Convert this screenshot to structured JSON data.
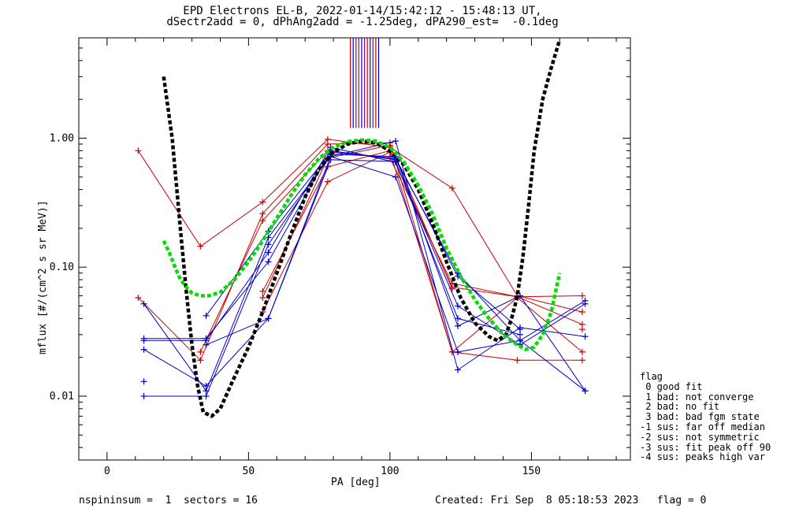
{
  "title_line1": "EPD Electrons EL-B, 2022-01-14/15:42:12 - 15:48:13 UT,",
  "title_line2": "dSectr2add = 0, dPhAng2add = -1.25deg, dPA290_est=  -0.1deg",
  "footer_left": "nspininsum =  1  sectors = 16",
  "footer_right": "Created: Fri Sep  8 05:18:53 2023   flag = 0",
  "legend": {
    "title": "flag",
    "items": [
      " 0 good fit",
      " 1 bad: not converge",
      " 2 bad: no fit",
      " 3 bad: bad fgm state",
      "-1 sus: far off median",
      "-2 sus: not symmetric",
      "-3 sus: fit peak off 90",
      "-4 sus: peaks high var"
    ]
  },
  "colors": {
    "red": "#cc0000",
    "blue": "#0000cc",
    "black": "#000000",
    "green": "#00dd00",
    "purple": "#7700aa"
  },
  "chart_data": {
    "type": "line",
    "xlabel": "PA [deg]",
    "ylabel": "mflux [#/(cm^2 s sr MeV)]",
    "xlim": [
      -10,
      185
    ],
    "ylim": [
      0.0032,
      6.0
    ],
    "ylog": true,
    "xticks": [
      0,
      50,
      100,
      150
    ],
    "xtick_labels": [
      "0",
      "50",
      "100",
      "150"
    ],
    "yticks": [
      0.01,
      0.1,
      1.0
    ],
    "ytick_labels": [
      "0.01",
      "0.10",
      "1.00"
    ],
    "vertical_lines_x": [
      86,
      87,
      88,
      89,
      90,
      91,
      92,
      93,
      94,
      95,
      96
    ],
    "vertical_lines_ymin": 1.2,
    "series": [
      {
        "color": "red",
        "x": [
          11,
          33,
          55,
          78,
          100,
          122,
          145,
          168
        ],
        "y": [
          0.8,
          0.145,
          0.32,
          0.98,
          0.85,
          0.41,
          0.06,
          0.045
        ]
      },
      {
        "color": "red",
        "x": [
          11,
          33,
          55,
          78,
          100,
          122,
          145,
          168
        ],
        "y": [
          0.058,
          0.019,
          0.26,
          0.9,
          0.92,
          0.022,
          0.019,
          0.019
        ]
      },
      {
        "color": "red",
        "x": [
          33,
          55,
          78,
          100,
          122,
          145,
          168
        ],
        "y": [
          0.022,
          0.23,
          0.8,
          0.7,
          0.075,
          0.059,
          0.06
        ]
      },
      {
        "color": "red",
        "x": [
          55,
          78,
          100,
          122,
          145,
          168
        ],
        "y": [
          0.065,
          0.6,
          0.8,
          0.07,
          0.059,
          0.036
        ]
      },
      {
        "color": "red",
        "x": [
          55,
          78,
          100,
          122,
          145,
          168
        ],
        "y": [
          0.045,
          0.46,
          0.78,
          0.022,
          0.058,
          0.022
        ]
      },
      {
        "color": "red",
        "x": [
          55,
          78,
          100,
          122
        ],
        "y": [
          0.058,
          0.7,
          0.88,
          0.068
        ]
      },
      {
        "color": "blue",
        "x": [
          13,
          35,
          57,
          79,
          102,
          124,
          146,
          169
        ],
        "y": [
          0.052,
          0.011,
          0.17,
          0.72,
          0.95,
          0.016,
          0.034,
          0.029
        ]
      },
      {
        "color": "blue",
        "x": [
          13,
          35,
          57,
          79,
          102,
          124,
          146,
          169
        ],
        "y": [
          0.028,
          0.028,
          0.11,
          0.8,
          0.68,
          0.09,
          0.027,
          0.011
        ]
      },
      {
        "color": "blue",
        "x": [
          13,
          35,
          57,
          79,
          102,
          124,
          146,
          169
        ],
        "y": [
          0.023,
          0.012,
          0.04,
          0.72,
          0.5,
          0.022,
          0.027,
          0.055
        ]
      },
      {
        "color": "blue",
        "x": [
          13,
          35,
          57,
          79,
          102,
          124,
          146,
          169
        ],
        "y": [
          0.01,
          0.01,
          0.15,
          0.75,
          0.72,
          0.035,
          0.06,
          0.011
        ]
      },
      {
        "color": "blue",
        "x": [
          13,
          35,
          57,
          79,
          102,
          124,
          146,
          169
        ],
        "y": [
          0.027,
          0.027,
          0.13,
          0.85,
          0.65,
          0.05,
          0.025,
          0.052
        ]
      },
      {
        "color": "blue",
        "x": [
          35,
          57,
          79,
          102,
          124,
          146
        ],
        "y": [
          0.042,
          0.19,
          0.78,
          0.7,
          0.085,
          0.033
        ]
      },
      {
        "color": "blue",
        "x": [
          35,
          57,
          79,
          102,
          124,
          146
        ],
        "y": [
          0.025,
          0.04,
          0.68,
          0.66,
          0.04,
          0.03
        ]
      }
    ],
    "extra_markers": [
      {
        "color": "blue",
        "x": 13,
        "y": 0.013
      },
      {
        "color": "red",
        "x": 168,
        "y": 0.033
      }
    ],
    "fits": [
      {
        "color": "black",
        "style": "dashed",
        "x": [
          20,
          23,
          26,
          28,
          30,
          32,
          34,
          37,
          40,
          45,
          50,
          55,
          60,
          65,
          70,
          75,
          80,
          85,
          90,
          95,
          100,
          105,
          110,
          115,
          120,
          125,
          130,
          135,
          138,
          141,
          143,
          145,
          147,
          149,
          151,
          154,
          157,
          160
        ],
        "y": [
          3.0,
          1.0,
          0.19,
          0.065,
          0.025,
          0.012,
          0.0075,
          0.007,
          0.008,
          0.014,
          0.024,
          0.045,
          0.09,
          0.18,
          0.35,
          0.58,
          0.78,
          0.9,
          0.95,
          0.92,
          0.8,
          0.62,
          0.4,
          0.22,
          0.11,
          0.058,
          0.037,
          0.029,
          0.027,
          0.03,
          0.04,
          0.059,
          0.12,
          0.3,
          0.8,
          2.0,
          3.5,
          5.8
        ]
      },
      {
        "color": "green",
        "style": "dashed",
        "x": [
          20,
          22,
          24,
          26,
          28,
          30,
          33,
          36,
          40,
          45,
          50,
          55,
          60,
          65,
          70,
          75,
          80,
          85,
          90,
          95,
          100,
          105,
          110,
          115,
          120,
          125,
          130,
          135,
          140,
          145,
          148,
          151,
          154,
          157,
          160
        ],
        "y": [
          0.16,
          0.13,
          0.1,
          0.08,
          0.07,
          0.063,
          0.06,
          0.06,
          0.064,
          0.08,
          0.11,
          0.16,
          0.24,
          0.36,
          0.52,
          0.7,
          0.85,
          0.94,
          0.97,
          0.95,
          0.85,
          0.65,
          0.43,
          0.26,
          0.14,
          0.085,
          0.056,
          0.04,
          0.03,
          0.025,
          0.023,
          0.024,
          0.03,
          0.045,
          0.09
        ]
      }
    ]
  }
}
